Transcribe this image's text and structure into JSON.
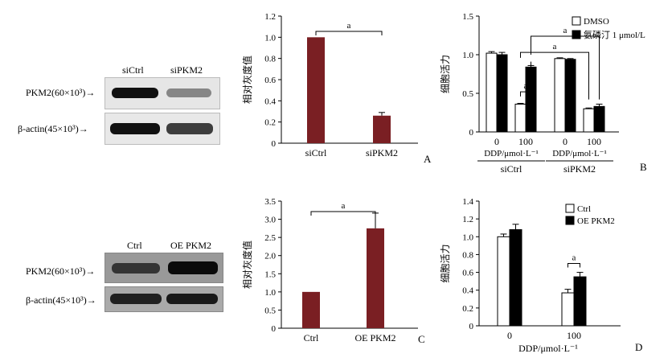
{
  "panels": {
    "A": {
      "letter": "A",
      "blot": {
        "lanes": [
          "siCtrl",
          "siPKM2"
        ],
        "rows": [
          {
            "label": "PKM2(60×10³)→",
            "intensity": [
              1.0,
              0.45
            ]
          },
          {
            "label": "β-actin(45×10³)→",
            "intensity": [
              1.0,
              0.8
            ]
          }
        ]
      }
    },
    "B": {
      "letter": "B"
    },
    "C": {
      "letter": "C",
      "blot": {
        "lanes": [
          "Ctrl",
          "OE PKM2"
        ],
        "rows": [
          {
            "label": "PKM2(60×10³)→",
            "intensity": [
              0.8,
              1.0
            ]
          },
          {
            "label": "β-actin(45×10³)→",
            "intensity": [
              0.9,
              0.95
            ]
          }
        ]
      }
    },
    "D": {
      "letter": "D"
    }
  },
  "chart_data": [
    {
      "id": "A",
      "type": "bar",
      "ylabel": "相对灰度值",
      "categories": [
        "siCtrl",
        "siPKM2"
      ],
      "values": [
        1.0,
        0.26
      ],
      "errors": [
        0,
        0.03
      ],
      "ylim": [
        0,
        1.2
      ],
      "yticks": [
        "0",
        "0.2",
        "0.4",
        "0.6",
        "0.8",
        "1.0",
        "1.2"
      ],
      "bar_color": "#7a1f23",
      "significance": [
        {
          "from": 0,
          "to": 1,
          "label": "a"
        }
      ]
    },
    {
      "id": "B",
      "type": "bar",
      "ylabel": "细胞活力",
      "categories": [
        "0",
        "100",
        "0",
        "100"
      ],
      "xlabel_units": [
        "DDP/μmol·L⁻¹",
        "DDP/μmol·L⁻¹"
      ],
      "groups": [
        "siCtrl",
        "siPKM2"
      ],
      "series": [
        {
          "name": "DMSO",
          "color": "#ffffff",
          "values": [
            1.02,
            0.36,
            0.95,
            0.3
          ],
          "errors": [
            0.02,
            0.01,
            0.01,
            0.01
          ]
        },
        {
          "name": "氨磷汀 1 μmol/L",
          "color": "#000000",
          "values": [
            1.0,
            0.84,
            0.94,
            0.33
          ],
          "errors": [
            0.03,
            0.02,
            0.01,
            0.03
          ]
        }
      ],
      "ylim": [
        0,
        1.5
      ],
      "yticks": [
        "0",
        "0.5",
        "1.0",
        "1.5"
      ],
      "legend_position": "top-right",
      "significance": [
        {
          "label": "a"
        },
        {
          "label": "a"
        },
        {
          "label": "a"
        }
      ]
    },
    {
      "id": "C",
      "type": "bar",
      "ylabel": "相对灰度值",
      "categories": [
        "Ctrl",
        "OE PKM2"
      ],
      "values": [
        1.0,
        2.75
      ],
      "errors": [
        0,
        0.42
      ],
      "ylim": [
        0,
        3.5
      ],
      "yticks": [
        "0",
        "0.5",
        "1.0",
        "1.5",
        "2.0",
        "2.5",
        "3.0",
        "3.5"
      ],
      "bar_color": "#7a1f23",
      "significance": [
        {
          "from": 0,
          "to": 1,
          "label": "a"
        }
      ]
    },
    {
      "id": "D",
      "type": "bar",
      "ylabel": "细胞活力",
      "xlabel": "DDP/μmol·L⁻¹",
      "categories": [
        "0",
        "100"
      ],
      "series": [
        {
          "name": "Ctrl",
          "color": "#ffffff",
          "values": [
            1.0,
            0.37
          ],
          "errors": [
            0.03,
            0.04
          ]
        },
        {
          "name": "OE PKM2",
          "color": "#000000",
          "values": [
            1.08,
            0.55
          ],
          "errors": [
            0.06,
            0.05
          ]
        }
      ],
      "ylim": [
        0,
        1.4
      ],
      "yticks": [
        "0",
        "0.2",
        "0.4",
        "0.6",
        "0.8",
        "1.0",
        "1.2",
        "1.4"
      ],
      "legend_position": "top-right",
      "significance": [
        {
          "label": "a"
        }
      ]
    }
  ]
}
